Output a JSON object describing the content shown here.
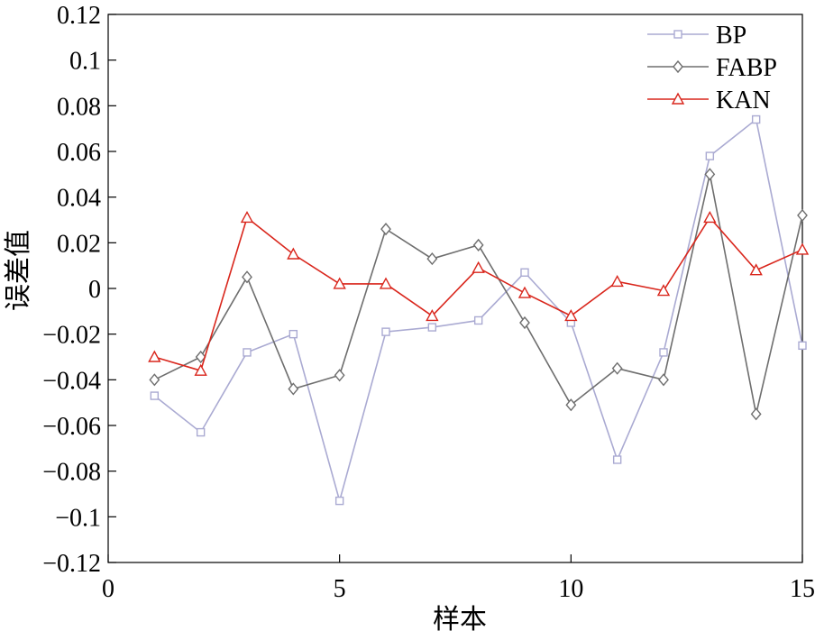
{
  "chart_data": {
    "type": "line",
    "title": "",
    "xlabel": "样本",
    "ylabel": "误差值",
    "xlim": [
      0,
      15
    ],
    "ylim": [
      -0.12,
      0.12
    ],
    "x_ticks": [
      0,
      5,
      10,
      15
    ],
    "x_tick_labels": [
      "0",
      "5",
      "10",
      "15"
    ],
    "y_ticks": [
      -0.12,
      -0.1,
      -0.08,
      -0.06,
      -0.04,
      -0.02,
      0,
      0.02,
      0.04,
      0.06,
      0.08,
      0.1,
      0.12
    ],
    "y_tick_labels": [
      "−0.12",
      "−0.1",
      "−0.08",
      "−0.06",
      "−0.04",
      "−0.02",
      "0",
      "0.02",
      "0.04",
      "0.06",
      "0.08",
      "0.1",
      "0.12"
    ],
    "grid": false,
    "legend_position": "top-right",
    "x": [
      1,
      2,
      3,
      4,
      5,
      6,
      7,
      8,
      9,
      10,
      11,
      12,
      13,
      14,
      15
    ],
    "series": [
      {
        "name": "BP",
        "color": "#aaaad2",
        "marker": "square",
        "values": [
          -0.047,
          -0.063,
          -0.028,
          -0.02,
          -0.093,
          -0.019,
          -0.017,
          -0.014,
          0.007,
          -0.015,
          -0.075,
          -0.028,
          0.058,
          0.074,
          -0.025
        ]
      },
      {
        "name": "FABP",
        "color": "#6e6e6e",
        "marker": "diamond",
        "values": [
          -0.04,
          -0.03,
          0.005,
          -0.044,
          -0.038,
          0.026,
          0.013,
          0.019,
          -0.015,
          -0.051,
          -0.035,
          -0.04,
          0.05,
          -0.055,
          0.032
        ]
      },
      {
        "name": "KAN",
        "color": "#d9261c",
        "marker": "triangle",
        "values": [
          -0.03,
          -0.036,
          0.031,
          0.015,
          0.002,
          0.002,
          -0.012,
          0.009,
          -0.002,
          -0.012,
          0.003,
          -0.001,
          0.031,
          0.008,
          0.017
        ]
      }
    ]
  }
}
